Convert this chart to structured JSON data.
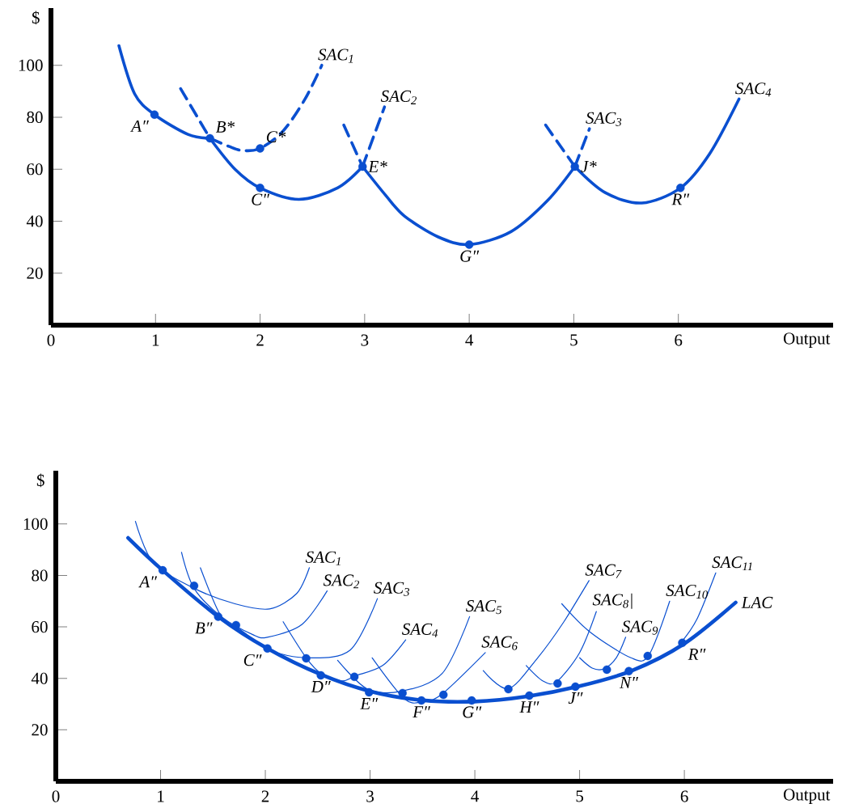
{
  "chart_data": [
    {
      "type": "line",
      "xlabel": "Output",
      "ylabel": "$",
      "xlim": [
        0,
        7.48
      ],
      "ylim": [
        0,
        122
      ],
      "xticks": [
        {
          "value": 0,
          "label": "0"
        },
        1,
        2,
        3,
        4,
        5,
        6
      ],
      "yticks": [
        20,
        40,
        60,
        80,
        100
      ],
      "series": [
        {
          "x": [
            0.65,
            0.8,
            0.99,
            1.31,
            1.52
          ],
          "values": [
            107.5,
            89,
            81,
            73.4,
            71.9
          ],
          "color": "#0a4fd0",
          "line_style": "solid"
        },
        {
          "name": "SAC$_{1}$",
          "x": [
            1.52,
            1.7,
            1.83,
            2.0,
            2.22,
            2.43,
            2.59
          ],
          "values": [
            71.9,
            68.8,
            67.2,
            68,
            74.7,
            87,
            100
          ],
          "color": "#0a4fd0",
          "line_style": "dashed"
        },
        {
          "x": [
            1.24,
            1.52
          ],
          "values": [
            91,
            71.9
          ],
          "color": "#0a4fd0",
          "line_style": "dashed"
        },
        {
          "x": [
            1.52,
            1.76,
            2.0,
            2.37,
            2.74,
            2.98
          ],
          "values": [
            71.9,
            60,
            52.8,
            48.4,
            52.8,
            61
          ],
          "color": "#0a4fd0",
          "line_style": "solid"
        },
        {
          "name": "SAC$_{2}$",
          "x": [
            2.98,
            3.19
          ],
          "values": [
            61,
            84
          ],
          "color": "#0a4fd0",
          "line_style": "dashed"
        },
        {
          "x": [
            2.8,
            2.98
          ],
          "values": [
            77,
            61
          ],
          "color": "#0a4fd0",
          "line_style": "dashed"
        },
        {
          "x": [
            2.98,
            3.2,
            3.38,
            3.7,
            4.0,
            4.4,
            4.75,
            5.01
          ],
          "values": [
            61,
            50,
            42,
            34,
            31,
            36,
            48,
            61
          ],
          "color": "#0a4fd0",
          "line_style": "solid"
        },
        {
          "name": "SAC$_{3}$",
          "x": [
            5.01,
            5.15
          ],
          "values": [
            61,
            75.6
          ],
          "color": "#0a4fd0",
          "line_style": "dashed"
        },
        {
          "x": [
            4.73,
            5.01
          ],
          "values": [
            77,
            61
          ],
          "color": "#0a4fd0",
          "line_style": "dashed"
        },
        {
          "name": "SAC$_{4}$",
          "x": [
            5.01,
            5.3,
            5.65,
            6.02,
            6.3,
            6.58
          ],
          "values": [
            61,
            51,
            47,
            52.8,
            66,
            87
          ],
          "color": "#0a4fd0",
          "line_style": "solid"
        },
        {
          "type": "scatter",
          "marker": "circle",
          "x": [
            0.99,
            1.52,
            2.0,
            2.0,
            2.98,
            4.0,
            5.01,
            6.02
          ],
          "values": [
            81,
            71.9,
            68,
            52.8,
            61,
            31,
            61,
            52.8
          ],
          "color": "#0a4fd0"
        }
      ],
      "annotations": [
        {
          "text": "A″",
          "x": 0.99,
          "y": 81
        },
        {
          "text": "B*",
          "x": 1.52,
          "y": 71.9
        },
        {
          "text": "C*",
          "x": 2.0,
          "y": 68
        },
        {
          "text": "C″",
          "x": 2.0,
          "y": 52.8
        },
        {
          "text": "E*",
          "x": 2.98,
          "y": 61
        },
        {
          "text": "G″",
          "x": 4.0,
          "y": 31
        },
        {
          "text": "J*",
          "x": 5.01,
          "y": 61
        },
        {
          "text": "R″",
          "x": 6.02,
          "y": 52.8
        }
      ]
    },
    {
      "type": "line",
      "xlabel": "Output",
      "ylabel": "$",
      "xlim": [
        0,
        7.42
      ],
      "ylim": [
        0,
        120.7
      ],
      "xticks": [
        {
          "value": 0,
          "label": "0"
        },
        1,
        2,
        3,
        4,
        5,
        6
      ],
      "yticks": [
        20,
        40,
        60,
        80,
        100
      ],
      "series": [
        {
          "name": "LAC",
          "x": [
            0.69,
            1.02,
            1.55,
            2.02,
            2.53,
            3.0,
            3.5,
            4.0,
            4.5,
            5.0,
            5.5,
            6.0,
            6.49
          ],
          "values": [
            94.6,
            82,
            64,
            51.6,
            41.5,
            35,
            31.5,
            31,
            33,
            37,
            43,
            53.5,
            69.5
          ],
          "color": "#0a4fd0",
          "line_style": "solid"
        },
        {
          "name": "SAC$_{1}$",
          "x": [
            0.76,
            0.93,
            1.32,
            1.71,
            2.04,
            2.3,
            2.42
          ],
          "values": [
            101,
            85,
            75,
            69,
            67,
            73,
            83
          ],
          "color": "#0a4fd0",
          "line_style": "solid"
        },
        {
          "name": "SAC$_{2}$",
          "x": [
            1.2,
            1.32,
            1.58,
            1.88,
            2.02,
            2.35,
            2.59
          ],
          "values": [
            89,
            75,
            64,
            57,
            56,
            61,
            74
          ],
          "color": "#0a4fd0",
          "line_style": "solid"
        },
        {
          "name": "SAC$_{3}$",
          "x": [
            1.38,
            1.58,
            1.76,
            2.04,
            2.4,
            2.81,
            3.07
          ],
          "values": [
            83,
            64,
            59,
            51,
            48,
            51,
            71
          ],
          "color": "#0a4fd0",
          "line_style": "solid"
        },
        {
          "name": "SAC$_{4}$",
          "x": [
            2.17,
            2.39,
            2.53,
            2.73,
            2.86,
            3.12,
            3.34
          ],
          "values": [
            62,
            48,
            42,
            39,
            41,
            45,
            55
          ],
          "color": "#0a4fd0",
          "line_style": "solid"
        },
        {
          "name": "SAC$_{5}$",
          "x": [
            2.69,
            2.97,
            3.3,
            3.69,
            3.95
          ],
          "values": [
            47,
            36,
            35,
            42,
            64
          ],
          "color": "#0a4fd0",
          "line_style": "solid"
        },
        {
          "name": "SAC$_{6}$",
          "x": [
            3.02,
            3.33,
            3.51,
            3.69,
            4.1
          ],
          "values": [
            48,
            32,
            31,
            34,
            50
          ],
          "color": "#0a4fd0",
          "line_style": "solid"
        },
        {
          "name": "SAC$_{7}$",
          "x": [
            4.08,
            4.32,
            4.6,
            4.85,
            5.09
          ],
          "values": [
            43,
            36,
            48,
            62,
            78
          ],
          "color": "#0a4fd0",
          "line_style": "solid"
        },
        {
          "name": "SAC$_{8}$|",
          "x": [
            4.49,
            4.65,
            4.78,
            5.0,
            5.16
          ],
          "values": [
            45,
            39,
            38.7,
            50,
            66
          ],
          "color": "#0a4fd0",
          "line_style": "solid"
        },
        {
          "name": "SAC$_{9}$",
          "x": [
            5.0,
            5.12,
            5.23,
            5.35,
            5.44
          ],
          "values": [
            48,
            44,
            43.7,
            48,
            56
          ],
          "color": "#0a4fd0",
          "line_style": "solid"
        },
        {
          "name": "SAC$_{10}$",
          "x": [
            4.83,
            5.1,
            5.49,
            5.66,
            5.86
          ],
          "values": [
            69,
            58,
            48,
            49,
            70
          ],
          "color": "#0a4fd0",
          "line_style": "solid"
        },
        {
          "name": "SAC$_{11}$",
          "x": [
            5.97,
            6.12,
            6.3
          ],
          "values": [
            54,
            63,
            81
          ],
          "color": "#0a4fd0",
          "line_style": "solid"
        },
        {
          "type": "scatter",
          "marker": "circle",
          "x": [
            1.02,
            1.32,
            1.55,
            1.72,
            2.02,
            2.39,
            2.53,
            2.85,
            2.99,
            3.31,
            3.49,
            3.7,
            3.97,
            4.32,
            4.52,
            4.79,
            4.96,
            5.26,
            5.47,
            5.65,
            5.98
          ],
          "values": [
            82,
            76,
            64,
            60.7,
            51.6,
            47.8,
            41.2,
            40.6,
            34.6,
            34.3,
            31.4,
            33.6,
            31.4,
            35.8,
            33.3,
            38,
            36.8,
            43.4,
            42.8,
            48.7,
            53.8
          ],
          "color": "#0a4fd0"
        }
      ],
      "annotations": [
        {
          "text": "A″",
          "x": 1.02,
          "y": 82
        },
        {
          "text": "B″",
          "x": 1.55,
          "y": 64
        },
        {
          "text": "C″",
          "x": 2.02,
          "y": 51.6
        },
        {
          "text": "D″",
          "x": 2.53,
          "y": 41.2
        },
        {
          "text": "E″",
          "x": 2.99,
          "y": 34.6
        },
        {
          "text": "F″",
          "x": 3.49,
          "y": 31.4
        },
        {
          "text": "G″",
          "x": 3.97,
          "y": 31.4
        },
        {
          "text": "H″",
          "x": 4.52,
          "y": 33.3
        },
        {
          "text": "J″",
          "x": 4.96,
          "y": 36.8
        },
        {
          "text": "N″",
          "x": 5.47,
          "y": 42.8
        },
        {
          "text": "R″",
          "x": 5.98,
          "y": 53.8
        }
      ]
    }
  ]
}
